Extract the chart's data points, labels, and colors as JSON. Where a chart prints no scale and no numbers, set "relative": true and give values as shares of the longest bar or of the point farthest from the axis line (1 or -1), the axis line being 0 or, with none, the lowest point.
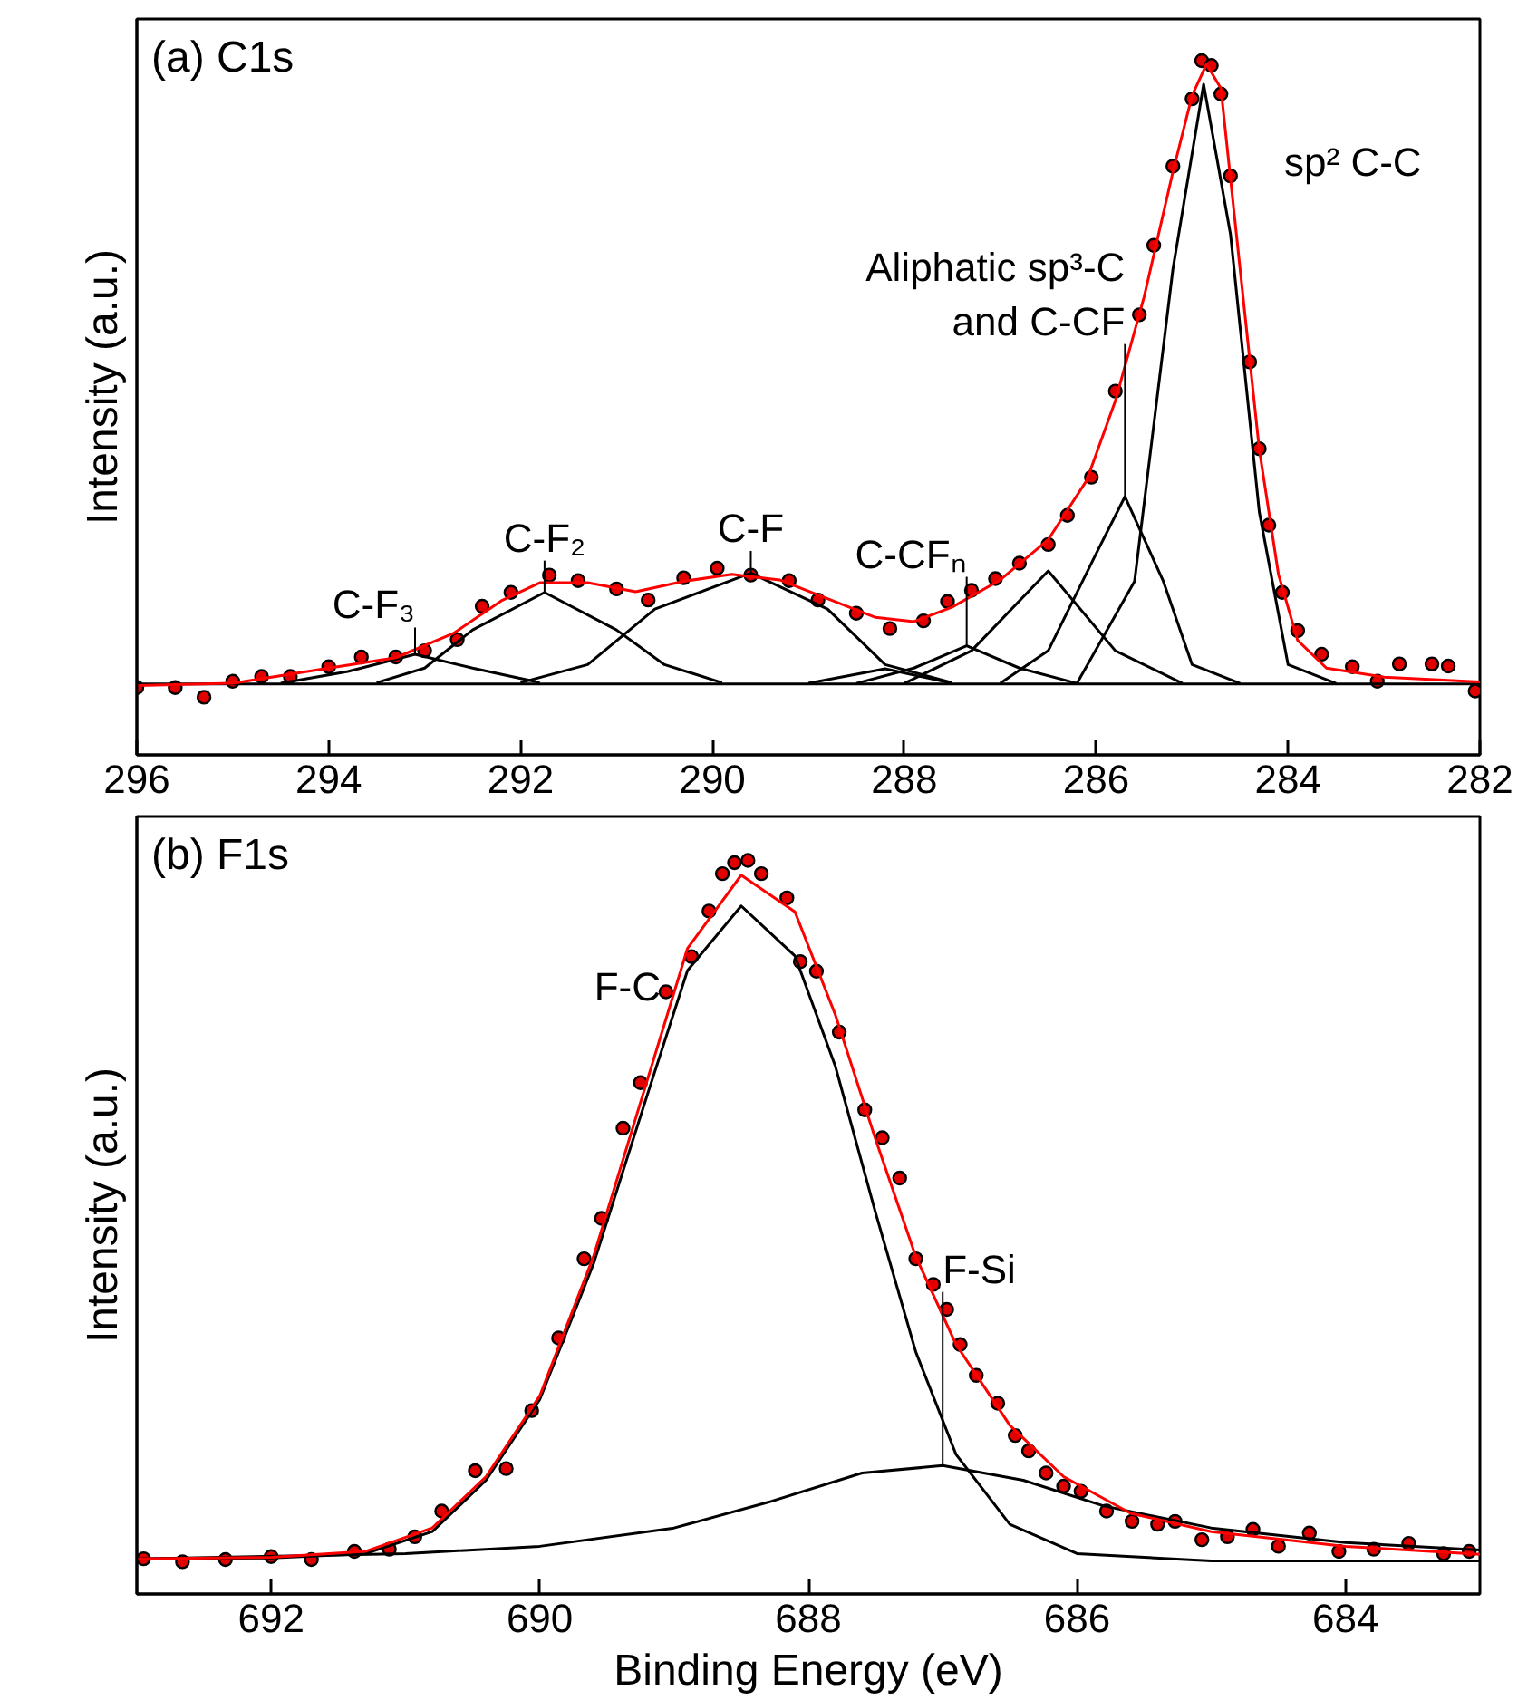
{
  "chart_data": [
    {
      "type": "line",
      "title": "(a) C1s",
      "ylabel": "Intensity (a.u.)",
      "relative": true,
      "xlim": [
        296,
        282
      ],
      "xticks": [
        296,
        294,
        292,
        290,
        288,
        286,
        284,
        282
      ],
      "grid": false,
      "tick_labels": "x",
      "series": [
        {
          "type": "scatter",
          "marker": "circle",
          "color": "#e00000",
          "x": [
            296.0,
            295.6,
            295.3,
            295.0,
            294.7,
            294.4,
            294.0,
            293.66,
            293.3,
            293.0,
            292.66,
            292.4,
            292.1,
            291.7,
            291.4,
            291.0,
            290.67,
            290.3,
            289.95,
            289.6,
            289.2,
            288.9,
            288.5,
            288.15,
            287.8,
            287.55,
            287.3,
            287.05,
            286.8,
            286.5,
            286.3,
            286.05,
            285.8,
            285.55,
            285.4,
            285.2,
            285.0,
            284.9,
            284.8,
            284.7,
            284.6,
            284.4,
            284.3,
            284.2,
            284.06,
            283.9,
            283.65,
            283.33,
            283.07,
            282.84,
            282.5,
            282.33,
            282.05
          ],
          "values": [
            0.097,
            0.097,
            0.083,
            0.106,
            0.113,
            0.113,
            0.127,
            0.141,
            0.141,
            0.15,
            0.166,
            0.214,
            0.234,
            0.259,
            0.251,
            0.239,
            0.223,
            0.255,
            0.269,
            0.259,
            0.251,
            0.223,
            0.204,
            0.182,
            0.193,
            0.221,
            0.237,
            0.254,
            0.276,
            0.303,
            0.345,
            0.4,
            0.524,
            0.634,
            0.734,
            0.848,
            0.945,
            1.0,
            0.993,
            0.952,
            0.834,
            0.566,
            0.441,
            0.331,
            0.234,
            0.179,
            0.145,
            0.127,
            0.106,
            0.131,
            0.131,
            0.128,
            0.092
          ]
        },
        {
          "color": "#000000",
          "x": [
            296,
            282
          ],
          "values": [
            0.102,
            0.102
          ]
        },
        {
          "name": "C-F₃",
          "color": "#000000",
          "x": [
            294.5,
            293.8,
            293.1,
            292.5,
            291.8
          ],
          "values": [
            0.103,
            0.12,
            0.145,
            0.125,
            0.104
          ]
        },
        {
          "name": "C-F₂",
          "color": "#000000",
          "x": [
            293.5,
            293.0,
            292.5,
            291.75,
            291.0,
            290.5,
            289.9
          ],
          "values": [
            0.104,
            0.125,
            0.18,
            0.234,
            0.18,
            0.13,
            0.104
          ]
        },
        {
          "name": "C-F",
          "color": "#000000",
          "x": [
            292.0,
            291.3,
            290.6,
            289.6,
            288.8,
            288.2,
            287.5
          ],
          "values": [
            0.104,
            0.13,
            0.21,
            0.262,
            0.21,
            0.13,
            0.104
          ]
        },
        {
          "color": "#000000",
          "x": [
            289.0,
            288.2,
            287.5
          ],
          "values": [
            0.103,
            0.124,
            0.103
          ]
        },
        {
          "name": "C-CFₙ",
          "color": "#000000",
          "x": [
            288.5,
            287.9,
            287.35,
            286.8,
            286.2
          ],
          "values": [
            0.103,
            0.125,
            0.157,
            0.125,
            0.103
          ]
        },
        {
          "color": "#000000",
          "x": [
            288.0,
            287.3,
            286.5,
            285.8,
            285.1
          ],
          "values": [
            0.103,
            0.15,
            0.265,
            0.15,
            0.103
          ]
        },
        {
          "name": "Aliphatic sp³-C\nand C-CF",
          "color": "#000000",
          "x": [
            287.0,
            286.5,
            286.0,
            285.7,
            285.3,
            285.0,
            284.5
          ],
          "values": [
            0.103,
            0.15,
            0.29,
            0.372,
            0.25,
            0.13,
            0.103
          ]
        },
        {
          "name": "sp² C-C",
          "color": "#000000",
          "x": [
            286.2,
            285.6,
            285.2,
            284.88,
            284.6,
            284.3,
            284.0,
            283.5
          ],
          "values": [
            0.103,
            0.25,
            0.7,
            0.966,
            0.75,
            0.35,
            0.13,
            0.103
          ]
        },
        {
          "color": "#ff0000",
          "x": [
            296,
            295,
            294,
            293.3,
            292.7,
            292.2,
            291.8,
            291.3,
            290.8,
            290.3,
            289.8,
            289.3,
            288.8,
            288.3,
            287.9,
            287.5,
            287.0,
            286.5,
            286.1,
            285.8,
            285.5,
            285.2,
            285.0,
            284.85,
            284.7,
            284.5,
            284.3,
            284.1,
            283.9,
            283.6,
            283.0,
            282.0
          ],
          "values": [
            0.1,
            0.103,
            0.125,
            0.14,
            0.175,
            0.222,
            0.248,
            0.248,
            0.235,
            0.25,
            0.26,
            0.252,
            0.225,
            0.198,
            0.192,
            0.213,
            0.252,
            0.31,
            0.395,
            0.51,
            0.66,
            0.84,
            0.95,
            0.995,
            0.96,
            0.7,
            0.44,
            0.26,
            0.165,
            0.125,
            0.112,
            0.105
          ]
        }
      ]
    },
    {
      "type": "line",
      "title": "(b) F1s",
      "xlabel": "Binding Energy (eV)",
      "ylabel": "Intensity (a.u.)",
      "relative": true,
      "xlim": [
        693,
        683
      ],
      "xticks": [
        692,
        690,
        688,
        686,
        684
      ],
      "grid": false,
      "tick_labels": "x",
      "series": [
        {
          "type": "scatter",
          "marker": "circle",
          "color": "#e00000",
          "x": [
            692.95,
            692.66,
            692.34,
            692.0,
            691.7,
            691.38,
            691.12,
            690.93,
            690.73,
            690.48,
            690.25,
            690.06,
            689.86,
            689.67,
            689.54,
            689.38,
            689.25,
            689.06,
            688.87,
            688.74,
            688.64,
            688.55,
            688.45,
            688.35,
            688.16,
            688.06,
            687.94,
            687.77,
            687.58,
            687.45,
            687.32,
            687.2,
            687.07,
            686.97,
            686.87,
            686.75,
            686.59,
            686.46,
            686.36,
            686.23,
            686.1,
            685.97,
            685.78,
            685.59,
            685.4,
            685.27,
            685.07,
            684.88,
            684.69,
            684.5,
            684.27,
            684.05,
            683.79,
            683.53,
            683.27,
            683.08
          ],
          "values": [
            0.048,
            0.044,
            0.047,
            0.051,
            0.047,
            0.058,
            0.061,
            0.078,
            0.113,
            0.168,
            0.171,
            0.25,
            0.349,
            0.457,
            0.512,
            0.635,
            0.697,
            0.821,
            0.869,
            0.931,
            0.982,
            0.997,
            1.0,
            0.982,
            0.949,
            0.862,
            0.849,
            0.766,
            0.66,
            0.622,
            0.567,
            0.457,
            0.422,
            0.388,
            0.34,
            0.298,
            0.26,
            0.216,
            0.195,
            0.165,
            0.147,
            0.14,
            0.113,
            0.099,
            0.095,
            0.099,
            0.074,
            0.078,
            0.088,
            0.065,
            0.083,
            0.058,
            0.061,
            0.069,
            0.055,
            0.058
          ]
        },
        {
          "name": "F-C",
          "color": "#000000",
          "x": [
            693,
            692,
            691.3,
            690.8,
            690.4,
            690.0,
            689.6,
            689.2,
            688.9,
            688.5,
            688.1,
            687.8,
            687.5,
            687.2,
            686.9,
            686.5,
            686.0,
            685.0,
            683
          ],
          "values": [
            0.048,
            0.049,
            0.055,
            0.085,
            0.155,
            0.265,
            0.45,
            0.68,
            0.85,
            0.938,
            0.87,
            0.72,
            0.52,
            0.33,
            0.19,
            0.095,
            0.055,
            0.045,
            0.045
          ]
        },
        {
          "name": "F-Si",
          "color": "#000000",
          "x": [
            693,
            691,
            690,
            689,
            688.3,
            687.6,
            687.0,
            686.4,
            685.8,
            685.0,
            684,
            683
          ],
          "values": [
            0.048,
            0.055,
            0.065,
            0.09,
            0.125,
            0.165,
            0.175,
            0.155,
            0.12,
            0.09,
            0.07,
            0.06
          ]
        },
        {
          "color": "#ff0000",
          "x": [
            693,
            692,
            691.3,
            690.8,
            690.4,
            690.0,
            689.6,
            689.2,
            688.9,
            688.5,
            688.1,
            687.8,
            687.5,
            687.2,
            686.9,
            686.5,
            686.1,
            685.6,
            685.0,
            684.0,
            683
          ],
          "values": [
            0.048,
            0.05,
            0.058,
            0.09,
            0.16,
            0.27,
            0.46,
            0.7,
            0.88,
            0.98,
            0.93,
            0.79,
            0.62,
            0.46,
            0.34,
            0.23,
            0.16,
            0.11,
            0.085,
            0.065,
            0.054
          ]
        }
      ]
    }
  ]
}
